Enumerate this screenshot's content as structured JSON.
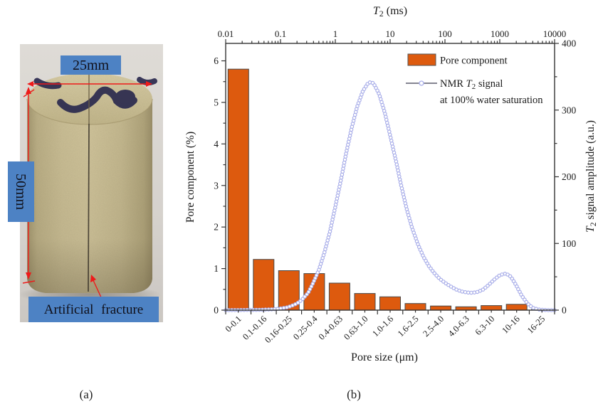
{
  "figure": {
    "captions": {
      "a": "(a)",
      "b": "(b)"
    }
  },
  "photo": {
    "diameter_label": "25mm",
    "height_label": "50mm",
    "fracture_label": "Artificial fracture",
    "label_bg": "#4d82c4",
    "annotation_color": "#ee1a1a"
  },
  "chart_data": {
    "type": "bar+line",
    "bar_series": {
      "name": "Pore component",
      "categories": [
        "0-0.1",
        "0.1-0.16",
        "0.16-0.25",
        "0.25-0.4",
        "0.4-0.63",
        "0.63-1.0",
        "1.0-1.6",
        "1.6-2.5",
        "2.5-4.0",
        "4.0-6.3",
        "6.3-10",
        "10-16",
        "16-25"
      ],
      "values": [
        5.8,
        1.22,
        0.95,
        0.88,
        0.65,
        0.4,
        0.32,
        0.16,
        0.1,
        0.08,
        0.11,
        0.14,
        0.02
      ],
      "fill": "#DD5A0E",
      "edge": "#4a4a4a"
    },
    "line_series": {
      "name": "NMR T_2 signal",
      "name_line2": "at 100% water saturation",
      "t2_ms": [
        0.01,
        0.02,
        0.04,
        0.063,
        0.08,
        0.1,
        0.13,
        0.16,
        0.2,
        0.25,
        0.32,
        0.4,
        0.5,
        0.63,
        0.8,
        1.0,
        1.3,
        1.6,
        2.0,
        2.5,
        3.2,
        4.0,
        4.5,
        5.0,
        6.3,
        8.0,
        10,
        13,
        16,
        20,
        25,
        32,
        40,
        50,
        63,
        80,
        100,
        130,
        160,
        200,
        250,
        320,
        400,
        500,
        630,
        800,
        1000,
        1300,
        1600,
        2000,
        2500,
        3200,
        4000,
        5000,
        6300,
        8000,
        10000
      ],
      "amplitude": [
        0,
        0.2,
        0.5,
        1,
        1.5,
        2.5,
        4,
        6.5,
        10,
        16,
        26,
        42,
        60,
        86,
        118,
        155,
        200,
        238,
        274,
        305,
        329,
        341,
        342,
        340,
        324,
        296,
        262,
        221,
        186,
        152,
        124,
        99,
        81,
        67,
        56,
        47,
        41,
        35,
        31,
        28,
        26.5,
        26,
        27.5,
        31,
        38,
        46,
        52.5,
        55,
        50,
        37,
        22,
        10,
        3.5,
        1,
        0.3,
        0,
        0
      ],
      "line_color": "#3c3c50",
      "marker_stroke": "#a9aee9",
      "marker_fill": "#ffffff"
    },
    "axes": {
      "top": {
        "label": "T_2 (ms)",
        "scale": "log",
        "min": 0.01,
        "max": 10000,
        "tick_labels": [
          "0.01",
          "0.1",
          "1",
          "10",
          "100",
          "1000",
          "10000"
        ]
      },
      "bottom": {
        "label": "Pore size (μm)"
      },
      "left": {
        "label": "Pore component (%)",
        "min": 0,
        "max": 6.42,
        "major_ticks": [
          0,
          1,
          2,
          3,
          4,
          5,
          6
        ],
        "minor_step": 0.5
      },
      "right": {
        "label": "T_2 signal amplitude (a.u.)",
        "min": 0,
        "max": 400,
        "major_ticks": [
          0,
          100,
          200,
          300,
          400
        ],
        "minor_step": 50
      }
    },
    "legend": [
      {
        "swatch": "bar",
        "label": "Pore component"
      },
      {
        "swatch": "line-marker",
        "label": "NMR T_2 signal",
        "label2": "at 100% water saturation"
      }
    ],
    "axis_color": "#333333"
  }
}
